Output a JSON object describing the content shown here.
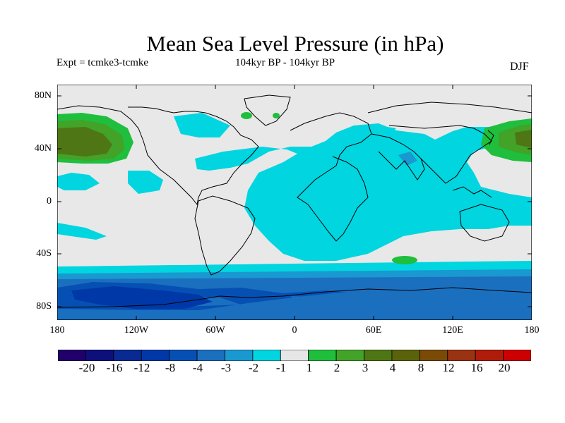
{
  "title": "Mean Sea Level Pressure (in hPa)",
  "experiment": "Expt = tcmke3-tcmke",
  "period": "104kyr BP - 104kyr BP",
  "season": "DJF",
  "map": {
    "lat_ticks": [
      "80N",
      "40N",
      "0",
      "40S",
      "80S"
    ],
    "lon_ticks": [
      "180",
      "120W",
      "60W",
      "0",
      "60E",
      "120E",
      "180"
    ],
    "ocean_color": "#e8e8e8",
    "coastline_color": "#000000"
  },
  "colorbar": {
    "colors": [
      "#21006b",
      "#0d0f7a",
      "#0a2a93",
      "#0038a8",
      "#0650b4",
      "#1b6fbf",
      "#1a98d0",
      "#00d5e0",
      "#e6e6e6",
      "#1fbe3c",
      "#43a228",
      "#4f7614",
      "#5a6309",
      "#7a4a06",
      "#993311",
      "#b01c0a",
      "#cc0000"
    ],
    "labels": [
      "-20",
      "-16",
      "-12",
      "-8",
      "-4",
      "-3",
      "-2",
      "-1",
      "1",
      "2",
      "3",
      "4",
      "8",
      "12",
      "16",
      "20"
    ]
  }
}
